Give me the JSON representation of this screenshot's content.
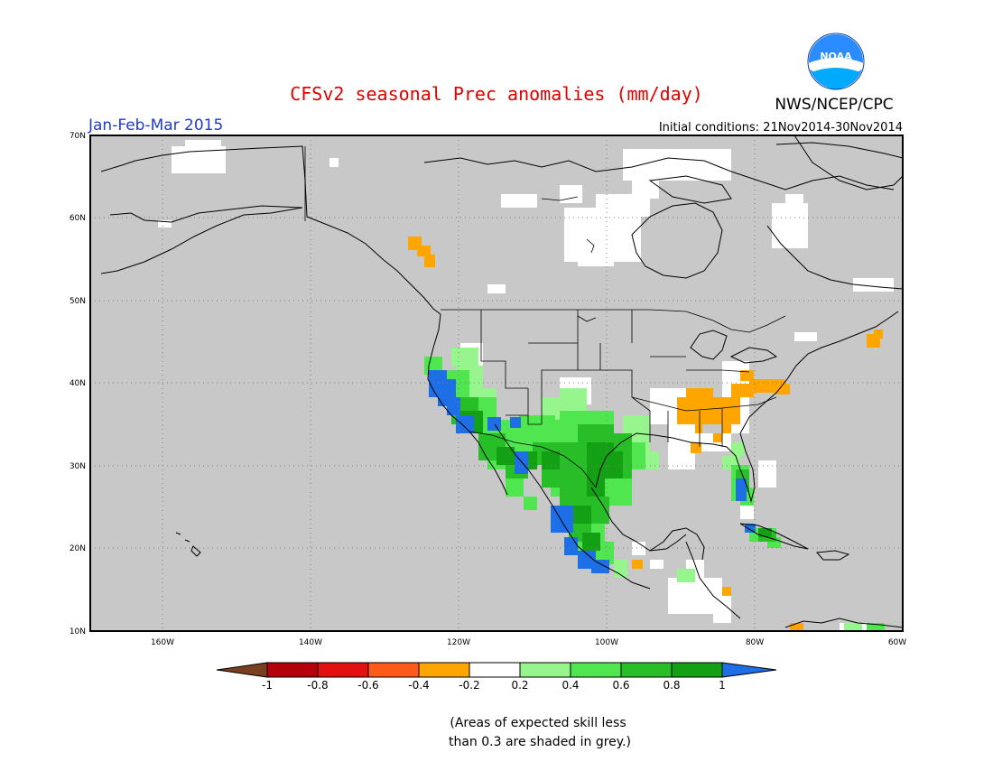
{
  "header": {
    "title": "CFSv2 seasonal Prec anomalies (mm/day)",
    "agency": "NWS/NCEP/CPC",
    "logo_text": "NOAA",
    "season": "Jan-Feb-Mar 2015",
    "initial_conditions": "Initial conditions: 21Nov2014-30Nov2014"
  },
  "map": {
    "lon_range": [
      -172,
      -60
    ],
    "lat_range": [
      10,
      70
    ],
    "lat_labels": [
      "70N",
      "60N",
      "50N",
      "40N",
      "30N",
      "20N",
      "10N"
    ],
    "lon_labels": [
      "160W",
      "140W",
      "120W",
      "100W",
      "80W",
      "60W"
    ],
    "ocean_color": "#c8c8c8",
    "grid_lines": true
  },
  "legend": {
    "tick_labels": [
      "-1",
      "-0.8",
      "-0.6",
      "-0.4",
      "-0.2",
      "0.2",
      "0.4",
      "0.6",
      "0.8",
      "1"
    ],
    "colors": [
      "#7a3f1e",
      "#b4000a",
      "#e2100e",
      "#ff5a1a",
      "#ffa500",
      "#ffffff",
      "#96f58c",
      "#50e650",
      "#28be28",
      "#14a014",
      "#1e6ee6"
    ]
  },
  "footnote": {
    "line1": "(Areas of expected skill less",
    "line2": "than 0.3 are shaded in grey.)"
  },
  "colors": {
    "title": "#e00000",
    "season": "#1e3cc8",
    "frame": "#000000",
    "white": "#ffffff",
    "orange": "#ffa500",
    "light_green": "#96f58c",
    "green": "#50e650",
    "mid_green": "#28be28",
    "dark_green": "#14a014",
    "blue": "#1e6ee6"
  }
}
